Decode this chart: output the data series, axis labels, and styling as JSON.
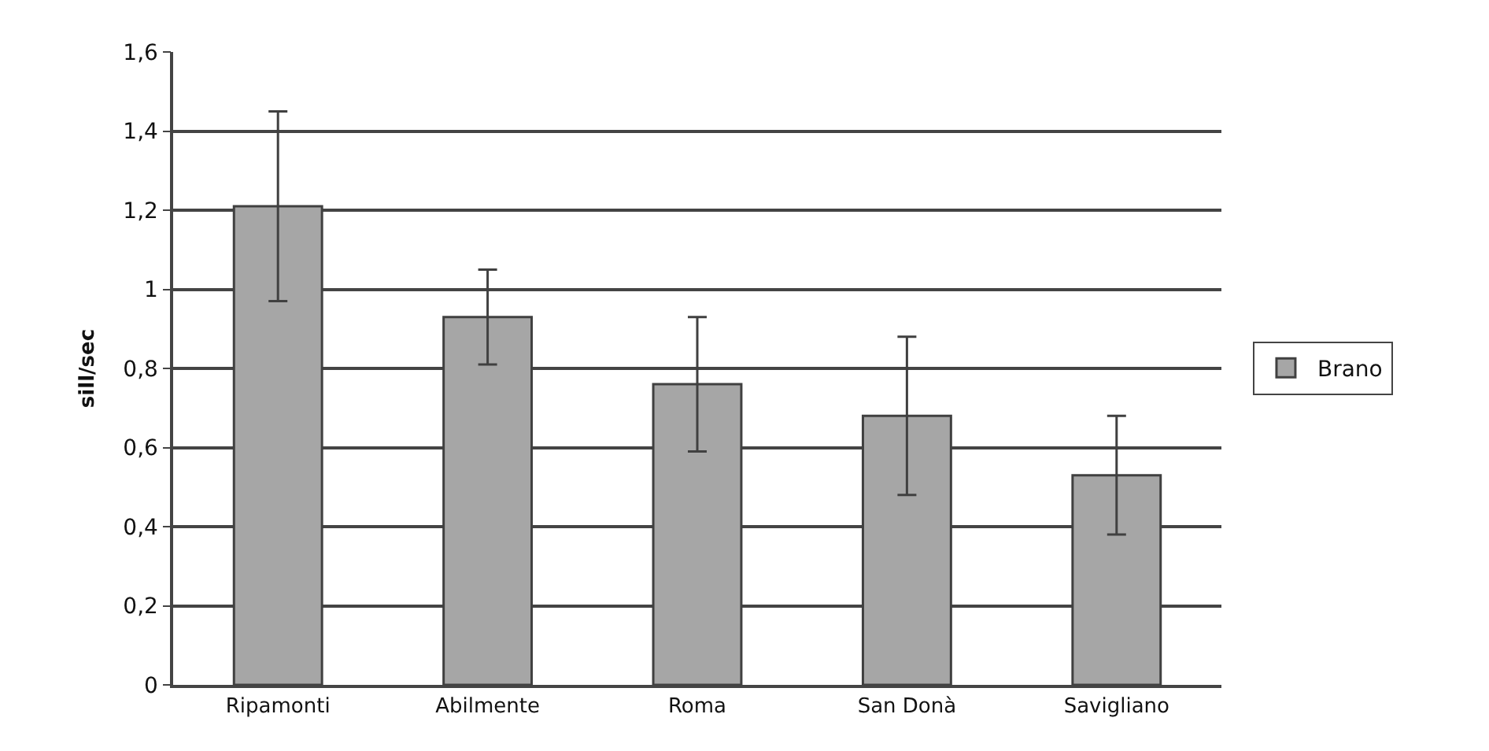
{
  "chart_data": {
    "type": "bar",
    "ylabel": "sill/sec",
    "categories": [
      "Ripamonti",
      "Abilmente",
      "Roma",
      "San Donà",
      "Savigliano"
    ],
    "series": [
      {
        "name": "Brano",
        "color": "#a6a6a6",
        "values": [
          1.21,
          0.93,
          0.76,
          0.68,
          0.53
        ],
        "errors": [
          0.24,
          0.12,
          0.17,
          0.2,
          0.15
        ]
      }
    ],
    "ylim": [
      0,
      1.6
    ],
    "yticks": [
      0,
      {
        "value": 0.2,
        "label": "0,2"
      },
      {
        "value": 0.4,
        "label": "0,4"
      },
      {
        "value": 0.6,
        "label": "0,6"
      },
      {
        "value": 0.8,
        "label": "0,8"
      },
      1,
      {
        "value": 1.2,
        "label": "1,2"
      },
      {
        "value": 1.4,
        "label": "1,4"
      },
      {
        "value": 1.6,
        "label": "1,6"
      }
    ],
    "grid": "y",
    "legend": "right"
  }
}
